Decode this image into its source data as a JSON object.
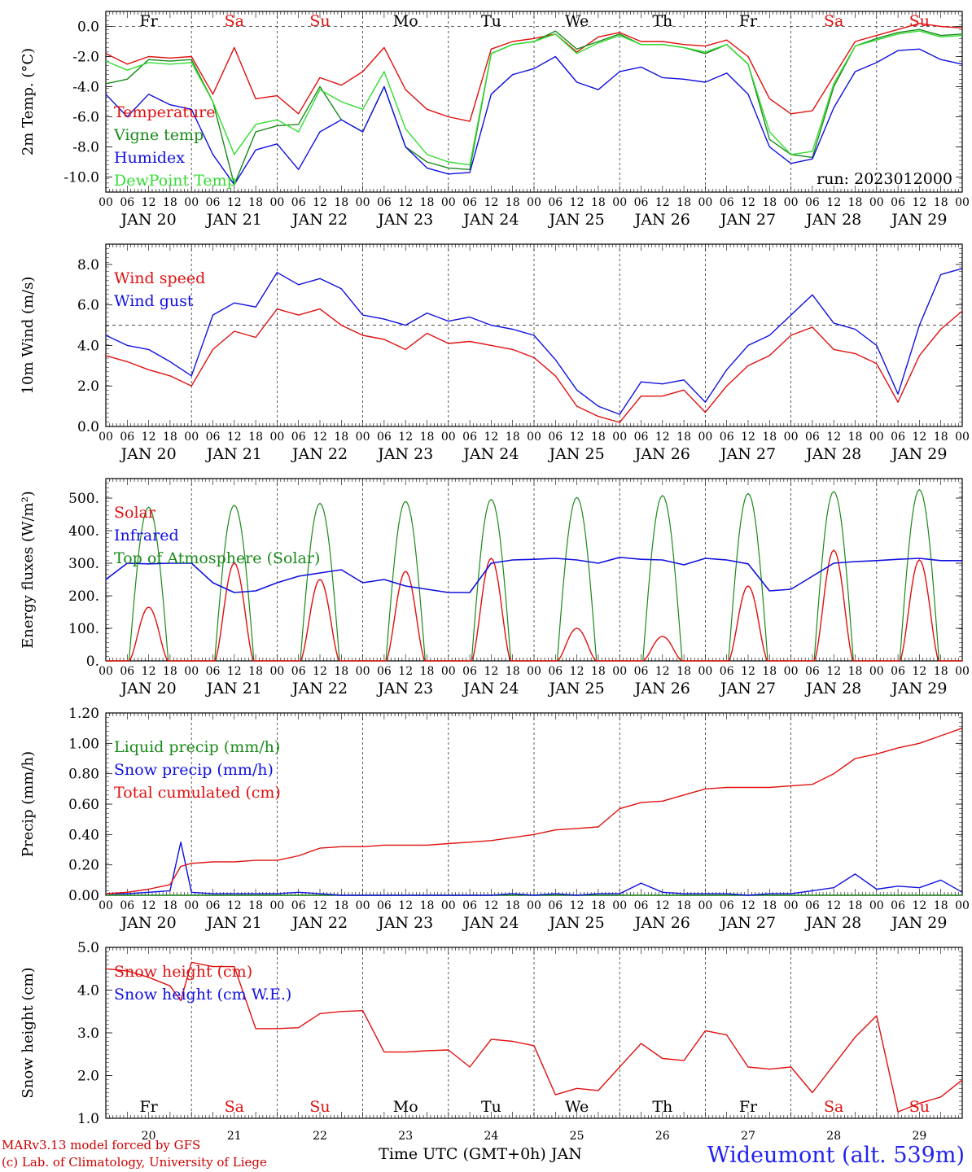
{
  "colors": {
    "red": "#e01010",
    "green": "#1a8a1a",
    "blue": "#1010e0",
    "lightgreen": "#33dd33",
    "sat_sun": "#e01010",
    "title_blue": "#2222ee"
  },
  "x_axis": {
    "hour_ticks": [
      "00",
      "06",
      "12",
      "18"
    ],
    "dates": [
      "JAN 20",
      "JAN 21",
      "JAN 22",
      "JAN 23",
      "JAN 24",
      "JAN 25",
      "JAN 26",
      "JAN 27",
      "JAN 28",
      "JAN 29"
    ],
    "days": [
      {
        "label": "Fr",
        "weekend": false
      },
      {
        "label": "Sa",
        "weekend": true
      },
      {
        "label": "Su",
        "weekend": true
      },
      {
        "label": "Mo",
        "weekend": false
      },
      {
        "label": "Tu",
        "weekend": false
      },
      {
        "label": "We",
        "weekend": false
      },
      {
        "label": "Th",
        "weekend": false
      },
      {
        "label": "Fr",
        "weekend": false
      },
      {
        "label": "Sa",
        "weekend": true
      },
      {
        "label": "Su",
        "weekend": true
      }
    ],
    "day_numbers": [
      "20",
      "21",
      "22",
      "23",
      "24",
      "25",
      "26",
      "27",
      "28",
      "29"
    ]
  },
  "chart_data": [
    {
      "type": "line",
      "ylabel": "2m Temp. (°C)",
      "ylim": [
        -11,
        1
      ],
      "yticks": [
        "0.0",
        "-2.0",
        "-4.0",
        "-6.0",
        "-8.0",
        "-10.0"
      ],
      "annotation": "run: 2023012000",
      "x_hours": [
        0,
        6,
        12,
        18,
        24,
        30,
        36,
        42,
        48,
        54,
        60,
        66,
        72,
        78,
        84,
        90,
        96,
        102,
        108,
        114,
        120,
        126,
        132,
        138,
        144,
        150,
        156,
        162,
        168,
        174,
        180,
        186,
        192,
        198,
        204,
        210,
        216,
        222,
        228,
        234,
        240
      ],
      "series": [
        {
          "name": "Temperature",
          "color": "red",
          "values": [
            -1.8,
            -2.5,
            -2.0,
            -2.1,
            -2.0,
            -4.5,
            -1.4,
            -4.8,
            -4.6,
            -5.8,
            -3.4,
            -3.9,
            -3.0,
            -1.4,
            -4.2,
            -5.5,
            -6.0,
            -6.3,
            -1.5,
            -1.0,
            -0.8,
            -0.5,
            -1.7,
            -0.7,
            -0.4,
            -1.0,
            -1.0,
            -1.2,
            -1.3,
            -0.9,
            -2.0,
            -4.8,
            -5.8,
            -5.6,
            -3.3,
            -1.0,
            -0.6,
            -0.2,
            0.2,
            0.0,
            -0.1
          ]
        },
        {
          "name": "Vigne temp",
          "color": "green",
          "values": [
            -3.8,
            -3.5,
            -2.2,
            -2.3,
            -2.2,
            -5.0,
            -10.5,
            -7.0,
            -6.6,
            -6.5,
            -4.0,
            -6.2,
            -7.0,
            -4.0,
            -8.0,
            -9.0,
            -9.4,
            -9.5,
            -1.8,
            -1.2,
            -1.0,
            -0.3,
            -1.5,
            -1.0,
            -0.5,
            -1.2,
            -1.2,
            -1.4,
            -1.8,
            -1.2,
            -2.5,
            -7.5,
            -8.5,
            -8.7,
            -4.0,
            -1.3,
            -0.8,
            -0.4,
            -0.2,
            -0.6,
            -0.5
          ]
        },
        {
          "name": "Humidex",
          "color": "blue",
          "values": [
            -4.5,
            -6.0,
            -4.5,
            -5.2,
            -5.5,
            -8.5,
            -10.5,
            -8.2,
            -7.8,
            -9.5,
            -7.0,
            -6.2,
            -7.0,
            -4.0,
            -8.0,
            -9.4,
            -9.8,
            -9.7,
            -4.5,
            -3.2,
            -2.8,
            -2.0,
            -3.7,
            -4.2,
            -3.0,
            -2.7,
            -3.4,
            -3.5,
            -3.7,
            -3.1,
            -4.5,
            -8.0,
            -9.1,
            -8.8,
            -5.4,
            -3.0,
            -2.4,
            -1.6,
            -1.5,
            -2.2,
            -2.5
          ]
        },
        {
          "name": "DewPoint Temp",
          "color": "lightgreen",
          "values": [
            -2.3,
            -2.9,
            -2.4,
            -2.5,
            -2.4,
            -5.0,
            -8.5,
            -6.5,
            -6.2,
            -7.0,
            -4.2,
            -5.0,
            -5.5,
            -3.0,
            -6.8,
            -8.5,
            -9.0,
            -9.2,
            -1.8,
            -1.2,
            -1.0,
            -0.5,
            -1.8,
            -1.1,
            -0.6,
            -1.2,
            -1.2,
            -1.4,
            -1.7,
            -1.2,
            -2.5,
            -7.0,
            -8.5,
            -8.3,
            -3.8,
            -1.3,
            -0.9,
            -0.5,
            -0.3,
            -0.7,
            -0.6
          ]
        }
      ]
    },
    {
      "type": "line",
      "ylabel": "10m Wind (m/s)",
      "ylim": [
        0,
        9
      ],
      "yticks": [
        "0.0",
        "2.0",
        "4.0",
        "6.0",
        "8.0"
      ],
      "ref_line": 5,
      "x_hours": [
        0,
        6,
        12,
        18,
        24,
        30,
        36,
        42,
        48,
        54,
        60,
        66,
        72,
        78,
        84,
        90,
        96,
        102,
        108,
        114,
        120,
        126,
        132,
        138,
        144,
        150,
        156,
        162,
        168,
        174,
        180,
        186,
        192,
        198,
        204,
        210,
        216,
        222,
        228,
        234,
        240
      ],
      "series": [
        {
          "name": "Wind speed",
          "color": "red",
          "values": [
            3.5,
            3.2,
            2.8,
            2.5,
            2.0,
            3.8,
            4.7,
            4.4,
            5.8,
            5.5,
            5.8,
            5.0,
            4.5,
            4.3,
            3.8,
            4.6,
            4.1,
            4.2,
            4.0,
            3.8,
            3.4,
            2.5,
            1.0,
            0.5,
            0.2,
            1.5,
            1.5,
            1.8,
            0.7,
            2.0,
            3.0,
            3.5,
            4.5,
            4.9,
            3.8,
            3.6,
            3.1,
            1.2,
            3.5,
            4.8,
            5.7
          ]
        },
        {
          "name": "Wind gust",
          "color": "blue",
          "values": [
            4.5,
            4.0,
            3.8,
            3.2,
            2.5,
            5.5,
            6.1,
            5.9,
            7.6,
            7.0,
            7.3,
            6.8,
            5.5,
            5.3,
            5.0,
            5.6,
            5.2,
            5.4,
            5.0,
            4.8,
            4.5,
            3.3,
            1.8,
            1.0,
            0.6,
            2.2,
            2.1,
            2.3,
            1.2,
            2.8,
            4.0,
            4.5,
            5.5,
            6.5,
            5.1,
            4.8,
            4.0,
            1.6,
            5.0,
            7.5,
            7.8
          ]
        }
      ]
    },
    {
      "type": "line",
      "ylabel": "Energy fluxes (W/m²)",
      "ylim": [
        0,
        560
      ],
      "yticks": [
        "0.",
        "100.",
        "200.",
        "300.",
        "400.",
        "500."
      ],
      "diurnal": {
        "toa_peaks": [
          472,
          478,
          484,
          490,
          496,
          502,
          508,
          514,
          520,
          526
        ],
        "solar_peaks": [
          165,
          300,
          250,
          275,
          315,
          100,
          75,
          230,
          340,
          310
        ]
      },
      "infrared_hours": [
        0,
        6,
        12,
        18,
        24,
        30,
        36,
        42,
        48,
        54,
        60,
        66,
        72,
        78,
        84,
        90,
        96,
        102,
        108,
        114,
        120,
        126,
        132,
        138,
        144,
        150,
        156,
        162,
        168,
        174,
        180,
        186,
        192,
        198,
        204,
        210,
        216,
        222,
        228,
        234,
        240
      ],
      "infrared_values": [
        250,
        300,
        298,
        300,
        300,
        240,
        210,
        215,
        240,
        260,
        270,
        280,
        240,
        250,
        230,
        220,
        210,
        210,
        300,
        310,
        312,
        315,
        310,
        300,
        318,
        312,
        310,
        295,
        315,
        310,
        298,
        215,
        220,
        260,
        300,
        305,
        308,
        312,
        315,
        308,
        308
      ],
      "series": [
        {
          "name": "Solar",
          "color": "red"
        },
        {
          "name": "Infrared",
          "color": "blue"
        },
        {
          "name": "Top of Atmosphere (Solar)",
          "color": "green"
        }
      ]
    },
    {
      "type": "line",
      "ylabel": "Precip (mm/h)",
      "ylim": [
        0,
        1.2
      ],
      "yticks": [
        "0.00",
        "0.20",
        "0.40",
        "0.60",
        "0.80",
        "1.00",
        "1.20"
      ],
      "x_hours": [
        0,
        6,
        12,
        18,
        21,
        24,
        30,
        36,
        42,
        48,
        54,
        60,
        66,
        72,
        78,
        84,
        90,
        96,
        102,
        108,
        114,
        120,
        126,
        132,
        138,
        144,
        150,
        156,
        162,
        168,
        174,
        180,
        186,
        192,
        198,
        204,
        210,
        216,
        222,
        228,
        234,
        240
      ],
      "series": [
        {
          "name": "Liquid precip (mm/h)",
          "color": "green",
          "values": [
            0,
            0,
            0,
            0,
            0,
            0,
            0,
            0,
            0,
            0,
            0,
            0,
            0,
            0,
            0,
            0,
            0,
            0,
            0,
            0,
            0,
            0,
            0,
            0,
            0,
            0,
            0,
            0,
            0,
            0,
            0,
            0,
            0,
            0,
            0,
            0,
            0,
            0,
            0,
            0,
            0,
            0
          ]
        },
        {
          "name": "Snow precip (mm/h)",
          "color": "blue",
          "values": [
            0.01,
            0.01,
            0.02,
            0.03,
            0.35,
            0.02,
            0.01,
            0.01,
            0.01,
            0.01,
            0.02,
            0.01,
            0.0,
            0.0,
            0.0,
            0.0,
            0.0,
            0.0,
            0.0,
            0.0,
            0.01,
            0.0,
            0.01,
            0.0,
            0.01,
            0.01,
            0.08,
            0.02,
            0.01,
            0.01,
            0.01,
            0.0,
            0.01,
            0.01,
            0.03,
            0.05,
            0.14,
            0.04,
            0.06,
            0.05,
            0.1,
            0.02
          ]
        },
        {
          "name": "Total cumulated (cm)",
          "color": "red",
          "values": [
            0.01,
            0.02,
            0.04,
            0.07,
            0.19,
            0.21,
            0.22,
            0.22,
            0.23,
            0.23,
            0.26,
            0.31,
            0.32,
            0.32,
            0.33,
            0.33,
            0.33,
            0.34,
            0.35,
            0.36,
            0.38,
            0.4,
            0.43,
            0.44,
            0.45,
            0.57,
            0.61,
            0.62,
            0.66,
            0.7,
            0.71,
            0.71,
            0.71,
            0.72,
            0.73,
            0.8,
            0.9,
            0.93,
            0.97,
            1.0,
            1.05,
            1.1
          ]
        }
      ]
    },
    {
      "type": "line",
      "ylabel": "Snow height (cm)",
      "ylim": [
        1.0,
        5.0
      ],
      "yticks": [
        "1.0",
        "2.0",
        "3.0",
        "4.0",
        "5.0"
      ],
      "xlabel": "Time UTC (GMT+0h) JAN",
      "x_hours": [
        0,
        6,
        12,
        18,
        21,
        24,
        30,
        36,
        42,
        48,
        54,
        60,
        66,
        72,
        78,
        84,
        90,
        96,
        102,
        108,
        114,
        120,
        126,
        132,
        138,
        144,
        150,
        156,
        162,
        168,
        174,
        180,
        186,
        192,
        198,
        204,
        210,
        216,
        222,
        228,
        234,
        240
      ],
      "series": [
        {
          "name": "Snow height (cm)",
          "color": "red",
          "values": [
            4.5,
            4.45,
            4.3,
            4.1,
            3.75,
            4.65,
            4.55,
            4.55,
            3.1,
            3.1,
            3.12,
            3.45,
            3.5,
            3.52,
            2.55,
            2.55,
            2.58,
            2.6,
            2.2,
            2.85,
            2.8,
            2.7,
            1.55,
            1.7,
            1.65,
            2.2,
            2.75,
            2.4,
            2.35,
            3.05,
            2.95,
            2.2,
            2.15,
            2.2,
            1.6,
            2.25,
            2.9,
            3.4,
            1.15,
            1.35,
            1.5,
            1.9
          ]
        },
        {
          "name": "Snow height (cm W.E.)",
          "color": "blue",
          "values": []
        }
      ]
    }
  ],
  "footer": {
    "model_line": "MARv3.13 model forced by GFS",
    "lab_line": "(c) Lab. of Climatology, University of Liege",
    "station": "Wideumont (alt. 539m)"
  }
}
